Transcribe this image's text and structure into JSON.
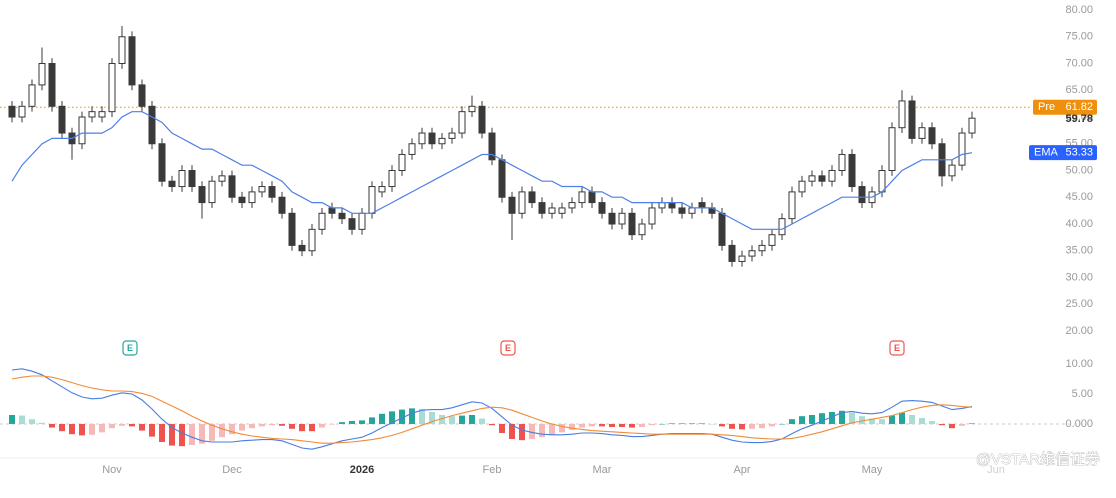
{
  "chart_data": {
    "type": "candlestick",
    "x": [
      0,
      1,
      2,
      3,
      4,
      5,
      6,
      7,
      8,
      9,
      10,
      11,
      12,
      13,
      14,
      15,
      16,
      17,
      18,
      19,
      20,
      21,
      22,
      23,
      24,
      25,
      26,
      27,
      28,
      29,
      30,
      31,
      32,
      33,
      34,
      35,
      36,
      37,
      38,
      39,
      40,
      41,
      42,
      43,
      44,
      45,
      46,
      47,
      48,
      49,
      50,
      51,
      52,
      53,
      54,
      55,
      56,
      57,
      58,
      59,
      60,
      61,
      62,
      63,
      64,
      65,
      66,
      67,
      68,
      69,
      70,
      71,
      72,
      73,
      74,
      75,
      76,
      77,
      78,
      79,
      80,
      81,
      82,
      83,
      84,
      85,
      86,
      87,
      88,
      89,
      90,
      91,
      92,
      93,
      94,
      95,
      96
    ],
    "xlim": [
      -1.2,
      100.8
    ],
    "xticks": [
      {
        "value": 10,
        "label": "Nov"
      },
      {
        "value": 22,
        "label": "Dec"
      },
      {
        "value": 35,
        "label": "2026"
      },
      {
        "value": 48,
        "label": "Feb"
      },
      {
        "value": 59,
        "label": "Mar"
      },
      {
        "value": 73,
        "label": "Apr"
      },
      {
        "value": 86,
        "label": "May"
      },
      {
        "value": 98.4,
        "label": "Jun"
      }
    ],
    "open": [
      62,
      60,
      62,
      66,
      70,
      62,
      57,
      55,
      60,
      60,
      61,
      70,
      75,
      66,
      62,
      55,
      48,
      47,
      50,
      47,
      44,
      48,
      49,
      45,
      44,
      46,
      47,
      45,
      42,
      36,
      35,
      39,
      43,
      42,
      41,
      39,
      42,
      46,
      47,
      50,
      53,
      55,
      57,
      55,
      56,
      57,
      61,
      62,
      57,
      52,
      45,
      42,
      46,
      44,
      42,
      42,
      43,
      44,
      46,
      44,
      42,
      40,
      42,
      38,
      40,
      43,
      44,
      43,
      42,
      44,
      43,
      42,
      36,
      33,
      34,
      35,
      36,
      38,
      41,
      46,
      48,
      49,
      48,
      50,
      53,
      47,
      44,
      46,
      50,
      58,
      63,
      56,
      58,
      55,
      49,
      51,
      57
    ],
    "high": [
      63,
      63,
      67,
      73,
      71,
      63,
      58,
      61,
      62,
      62,
      71,
      77,
      76,
      67,
      63,
      56,
      49,
      51,
      51,
      48,
      49,
      50,
      50,
      46,
      47,
      48,
      48,
      46,
      43,
      37,
      40,
      43,
      44,
      43,
      42,
      43,
      48,
      48,
      51,
      54,
      56,
      58,
      58,
      57,
      58,
      62,
      64,
      63,
      58,
      53,
      46,
      47,
      47,
      45,
      44,
      44,
      45,
      47,
      47,
      45,
      43,
      43,
      43,
      41,
      44,
      45,
      45,
      44,
      44,
      45,
      44,
      43,
      37,
      35,
      36,
      37,
      39,
      42,
      47,
      49,
      50,
      50,
      51,
      54,
      54,
      48,
      47,
      51,
      59,
      65,
      64,
      59,
      59,
      56,
      52,
      58,
      61
    ],
    "low": [
      59,
      59,
      61,
      65,
      61,
      56,
      52,
      54,
      59,
      59,
      60,
      69,
      65,
      61,
      54,
      47,
      46,
      46,
      46,
      41,
      43,
      47,
      44,
      43,
      43,
      45,
      44,
      41,
      35,
      34,
      34,
      38,
      41,
      40,
      38,
      38,
      41,
      45,
      46,
      49,
      52,
      54,
      54,
      54,
      55,
      56,
      60,
      56,
      51,
      44,
      37,
      41,
      43,
      41,
      41,
      41,
      42,
      43,
      43,
      41,
      39,
      39,
      37,
      37,
      39,
      42,
      42,
      41,
      41,
      42,
      41,
      35,
      32,
      32,
      33,
      34,
      35,
      37,
      40,
      45,
      47,
      47,
      47,
      49,
      46,
      43,
      43,
      45,
      49,
      57,
      55,
      55,
      54,
      47,
      48,
      50,
      56
    ],
    "close": [
      60,
      62,
      66,
      70,
      62,
      57,
      55,
      60,
      61,
      61,
      70,
      75,
      66,
      62,
      55,
      48,
      47,
      50,
      47,
      44,
      48,
      49,
      45,
      44,
      46,
      47,
      45,
      42,
      36,
      35,
      39,
      42,
      42,
      41,
      39,
      42,
      47,
      47,
      50,
      53,
      55,
      57,
      55,
      56,
      57,
      61,
      62,
      57,
      52,
      45,
      42,
      46,
      44,
      42,
      43,
      43,
      44,
      46,
      44,
      42,
      40,
      42,
      38,
      40,
      43,
      44,
      43,
      42,
      43,
      43,
      42,
      36,
      33,
      34,
      35,
      36,
      38,
      41,
      46,
      48,
      49,
      48,
      50,
      53,
      47,
      44,
      46,
      50,
      58,
      63,
      56,
      58,
      55,
      49,
      51,
      57,
      59.78
    ],
    "up_color": "#ffffff",
    "down_color": "#3a3a3a",
    "ylim": [
      18.13,
      81.87
    ],
    "yticks": [
      {
        "value": 80,
        "label": "80.00"
      },
      {
        "value": 75,
        "label": "75.00"
      },
      {
        "value": 70,
        "label": "70.00"
      },
      {
        "value": 65,
        "label": "65.00"
      },
      {
        "value": 60,
        "label": "60.00"
      },
      {
        "value": 55,
        "label": "55.00"
      },
      {
        "value": 50,
        "label": "50.00"
      },
      {
        "value": 45,
        "label": "45.00"
      },
      {
        "value": 40,
        "label": "40.00"
      },
      {
        "value": 35,
        "label": "35.00"
      },
      {
        "value": 30,
        "label": "30.00"
      },
      {
        "value": 25,
        "label": "25.00"
      },
      {
        "value": 20,
        "label": "20.00"
      }
    ],
    "ema": {
      "name": "EMA",
      "color": "#4f7fe8",
      "tag_color": "#2962ff",
      "values": [
        48,
        51,
        53,
        55,
        56,
        56,
        56,
        57,
        57,
        57,
        58,
        60,
        61,
        61,
        60,
        59,
        57,
        56,
        55,
        54,
        54,
        53,
        52,
        51,
        51,
        50,
        49,
        48,
        46,
        45,
        44,
        44,
        43,
        43,
        42,
        42,
        42,
        43,
        44,
        45,
        46,
        47,
        48,
        49,
        50,
        51,
        52,
        53,
        53,
        52,
        51,
        50,
        49,
        48,
        48,
        47,
        47,
        47,
        46,
        46,
        45,
        45,
        44,
        44,
        44,
        44,
        44,
        44,
        43,
        43,
        43,
        42,
        41,
        40,
        39,
        39,
        39,
        39,
        40,
        41,
        42,
        43,
        44,
        45,
        45,
        45,
        45,
        46,
        48,
        50,
        51,
        52,
        52,
        52,
        52,
        53,
        53.33
      ]
    },
    "pre_market": {
      "name": "Pre",
      "value": 61.82,
      "color": "#f0900a"
    },
    "events": [
      {
        "label": "E",
        "x": 11.8,
        "color": "#26a69a"
      },
      {
        "label": "E",
        "x": 49.6,
        "color": "#ef5350"
      },
      {
        "label": "E",
        "x": 88.5,
        "color": "#ef5350"
      }
    ],
    "indicator": {
      "type": "macd",
      "ylim": [
        -5.17,
        12.33
      ],
      "yticks": [
        {
          "value": 10,
          "label": "10.00"
        },
        {
          "value": 5,
          "label": "5.00"
        },
        {
          "value": 0,
          "label": "0.000"
        }
      ],
      "series": [
        {
          "color": "#4a7de0",
          "values": [
            9,
            9.2,
            8.8,
            8.2,
            7.2,
            6.2,
            5.2,
            4.5,
            4.2,
            4.3,
            4.8,
            5.2,
            5,
            4,
            2.5,
            0.8,
            -0.6,
            -1.5,
            -2.2,
            -2.8,
            -3,
            -3,
            -3,
            -2.8,
            -2.7,
            -2.6,
            -2.6,
            -2.8,
            -3.4,
            -4,
            -4.2,
            -3.8,
            -3.3,
            -2.8,
            -2.5,
            -2.2,
            -1.5,
            -0.6,
            0.2,
            1,
            1.8,
            2.3,
            2.4,
            2.4,
            2.7,
            3.2,
            3.7,
            3.5,
            2.6,
            1.2,
            -0.2,
            -1,
            -1.4,
            -1.7,
            -1.8,
            -1.8,
            -1.7,
            -1.5,
            -1.5,
            -1.6,
            -1.8,
            -1.9,
            -2.1,
            -2.1,
            -1.9,
            -1.7,
            -1.6,
            -1.6,
            -1.6,
            -1.6,
            -1.7,
            -2.2,
            -2.7,
            -3,
            -3.1,
            -3.1,
            -2.9,
            -2.5,
            -1.6,
            -0.8,
            -0.2,
            0.5,
            1.2,
            1.9,
            2.1,
            1.8,
            1.7,
            1.9,
            2.8,
            3.8,
            3.9,
            3.8,
            3.6,
            3,
            2.4,
            2.6,
            2.9
          ]
        },
        {
          "color": "#f08c3a",
          "values": [
            7.5,
            7.8,
            8,
            8,
            7.8,
            7.4,
            6.9,
            6.4,
            6,
            5.7,
            5.5,
            5.5,
            5.4,
            5.1,
            4.6,
            3.8,
            3,
            2.2,
            1.3,
            0.5,
            -0.2,
            -0.8,
            -1.3,
            -1.7,
            -2,
            -2.2,
            -2.4,
            -2.5,
            -2.6,
            -2.8,
            -3,
            -3.2,
            -3.2,
            -3.1,
            -3,
            -2.8,
            -2.6,
            -2.3,
            -1.9,
            -1.4,
            -0.8,
            -0.2,
            0.4,
            0.9,
            1.4,
            1.8,
            2.2,
            2.6,
            2.8,
            2.7,
            2.3,
            1.7,
            1.1,
            0.5,
            0,
            -0.4,
            -0.7,
            -0.9,
            -1.1,
            -1.2,
            -1.3,
            -1.4,
            -1.5,
            -1.6,
            -1.7,
            -1.7,
            -1.7,
            -1.7,
            -1.7,
            -1.7,
            -1.7,
            -1.8,
            -1.9,
            -2.1,
            -2.3,
            -2.4,
            -2.5,
            -2.5,
            -2.4,
            -2.1,
            -1.7,
            -1.3,
            -0.8,
            -0.3,
            0.2,
            0.5,
            0.8,
            1.1,
            1.4,
            1.9,
            2.4,
            2.8,
            3.1,
            3.2,
            3.1,
            2.9,
            2.8
          ]
        }
      ],
      "histogram": {
        "values": [
          1.5,
          1.4,
          0.8,
          0.2,
          -0.6,
          -1.2,
          -1.7,
          -1.9,
          -1.8,
          -1.4,
          -0.7,
          -0.3,
          -0.4,
          -1.1,
          -2.1,
          -3,
          -3.6,
          -3.7,
          -3.5,
          -3.3,
          -2.8,
          -2.2,
          -1.7,
          -1.1,
          -0.7,
          -0.4,
          -0.2,
          -0.3,
          -0.8,
          -1.2,
          -1.2,
          -0.6,
          -0.1,
          0.3,
          0.5,
          0.6,
          1.1,
          1.7,
          2.1,
          2.4,
          2.6,
          2.5,
          2,
          1.5,
          1.3,
          1.4,
          1.5,
          0.9,
          -0.2,
          -1.5,
          -2.5,
          -2.7,
          -2.5,
          -2.2,
          -1.8,
          -1.4,
          -1,
          -0.6,
          -0.4,
          -0.4,
          -0.5,
          -0.5,
          -0.6,
          -0.5,
          -0.2,
          0,
          0.1,
          0.1,
          0.1,
          0.1,
          0,
          -0.4,
          -0.8,
          -0.9,
          -0.8,
          -0.7,
          -0.4,
          0,
          0.8,
          1.3,
          1.5,
          1.8,
          2,
          2.2,
          1.9,
          1.3,
          0.9,
          0.8,
          1.4,
          1.9,
          1.5,
          1,
          0.5,
          -0.2,
          -0.7,
          -0.3,
          0.1
        ],
        "colors": {
          "rising_positive": "#26a69a",
          "falling_positive": "#a8dcd5",
          "falling_negative": "#ef5350",
          "rising_negative": "#f7b8b8"
        }
      }
    }
  },
  "watermark": "@VSTAR维信证券"
}
